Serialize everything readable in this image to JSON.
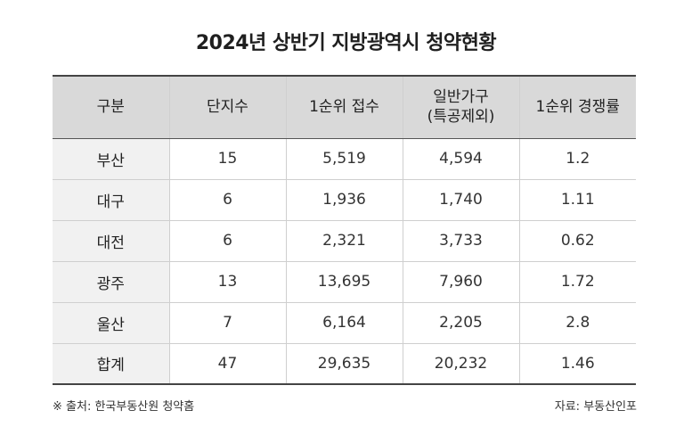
{
  "title": "2024년 상반기 지방광역시 청약현황",
  "table": {
    "headers": [
      [
        "구분"
      ],
      [
        "단지수"
      ],
      [
        "1순위 접수"
      ],
      [
        "일반가구",
        "(특공제외)"
      ],
      [
        "1순위 경쟁률"
      ]
    ],
    "rows": [
      [
        "부산",
        "15",
        "5,519",
        "4,594",
        "1.2"
      ],
      [
        "대구",
        "6",
        "1,936",
        "1,740",
        "1.11"
      ],
      [
        "대전",
        "6",
        "2,321",
        "3,733",
        "0.62"
      ],
      [
        "광주",
        "13",
        "13,695",
        "7,960",
        "1.72"
      ],
      [
        "울산",
        "7",
        "6,164",
        "2,205",
        "2.8"
      ],
      [
        "합계",
        "47",
        "29,635",
        "20,232",
        "1.46"
      ]
    ]
  },
  "footer": {
    "source": "※ 출처: 한국부동산원 청약홈",
    "credit": "자료: 부동산인포"
  }
}
